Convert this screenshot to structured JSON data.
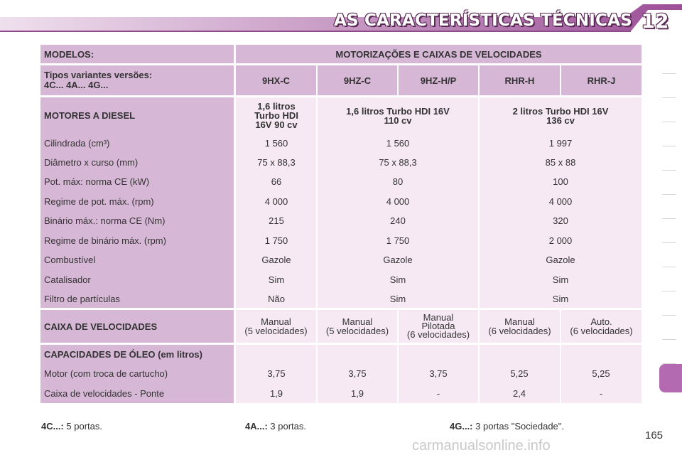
{
  "header": {
    "title": "AS CARACTERÍSTICAS TÉCNICAS",
    "chapter": "12"
  },
  "table": {
    "models_label": "MODELOS:",
    "group_label": "MOTORIZAÇÕES E CAIXAS DE VELOCIDADES",
    "variants_label_1": "Tipos variantes versões:",
    "variants_label_2": "4C... 4A... 4G...",
    "variants": [
      "9HX-C",
      "9HZ-C",
      "9HZ-H/P",
      "RHR-H",
      "RHR-J"
    ],
    "engines_label": "MOTORES A DIESEL",
    "engine_1": [
      "1,6 litros",
      "Turbo HDI",
      "16V 90 cv"
    ],
    "engine_2": [
      "1,6 litros Turbo HDI 16V",
      "110 cv"
    ],
    "engine_3": [
      "2 litros Turbo HDI 16V",
      "136 cv"
    ],
    "spec_rows": [
      {
        "label": "Cilindrada (cm³)",
        "values": [
          "1 560",
          "1 560",
          "1 997"
        ]
      },
      {
        "label": "Diâmetro x curso (mm)",
        "values": [
          "75 x 88,3",
          "75 x 88,3",
          "85 x 88"
        ]
      },
      {
        "label": "Pot. máx: norma CE (kW)",
        "values": [
          "66",
          "80",
          "100"
        ]
      },
      {
        "label": "Regime de pot. máx. (rpm)",
        "values": [
          "4 000",
          "4 000",
          "4 000"
        ]
      },
      {
        "label": "Binário máx.: norma CE (Nm)",
        "values": [
          "215",
          "240",
          "320"
        ]
      },
      {
        "label": "Regime de binário máx. (rpm)",
        "values": [
          "1 750",
          "1 750",
          "2 000"
        ]
      },
      {
        "label": "Combustível",
        "values": [
          "Gazole",
          "Gazole",
          "Gazole"
        ]
      },
      {
        "label": "Catalisador",
        "values": [
          "Sim",
          "Sim",
          "Sim"
        ]
      },
      {
        "label": "Filtro de partículas",
        "values": [
          "Não",
          "Sim",
          "Sim"
        ]
      }
    ],
    "gearbox_label": "CAIXA DE VELOCIDADES",
    "gearbox": [
      [
        "Manual",
        "(5 velocidades)"
      ],
      [
        "Manual",
        "(5 velocidades)"
      ],
      [
        "Manual",
        "Pilotada",
        "(6 velocidades)"
      ],
      [
        "Manual",
        "(6 velocidades)"
      ],
      [
        "Auto.",
        "(6 velocidades)"
      ]
    ],
    "oil_label": "CAPACIDADES DE ÓLEO (em litros)",
    "oil_rows": [
      {
        "label": "Motor (com troca de cartucho)",
        "values": [
          "3,75",
          "3,75",
          "3,75",
          "5,25",
          "5,25"
        ]
      },
      {
        "label": "Caixa de velocidades - Ponte",
        "values": [
          "1,9",
          "1,9",
          "-",
          "2,4",
          "-"
        ]
      }
    ]
  },
  "footnotes": [
    {
      "key": "4C...:",
      "text": "5 portas."
    },
    {
      "key": "4A...:",
      "text": "3 portas."
    },
    {
      "key": "4G...:",
      "text": "3 portas \"Sociedade\"."
    }
  ],
  "page_number": "165",
  "watermark": "carmanualsonline.info",
  "colors": {
    "header_cell": "#d7b7d6",
    "value_cell": "#f6e9f4",
    "accent": "#b46ab0"
  }
}
